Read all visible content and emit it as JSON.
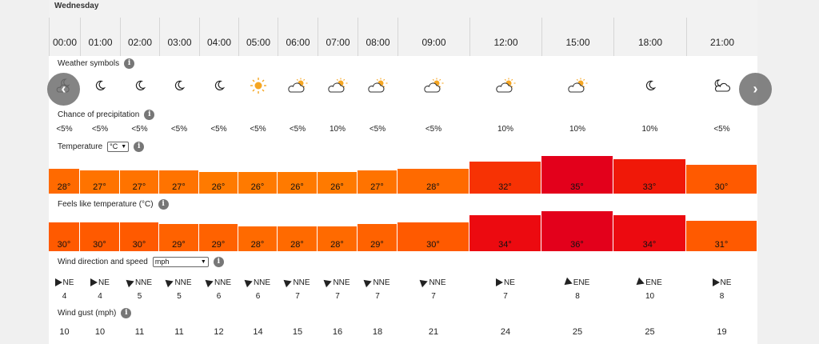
{
  "day": "Wednesday",
  "columns": [
    {
      "time": "00:00",
      "symbol": "moon-cloud",
      "precip": "<5%",
      "temp": "28°",
      "temp_c": 28,
      "feels": "30°",
      "feels_c": 30,
      "wind_dir": "NE",
      "wind_rot": 45,
      "wind": "4",
      "gust": "10"
    },
    {
      "time": "01:00",
      "symbol": "moon",
      "precip": "<5%",
      "temp": "27°",
      "temp_c": 27,
      "feels": "30°",
      "feels_c": 30,
      "wind_dir": "NE",
      "wind_rot": 45,
      "wind": "4",
      "gust": "10"
    },
    {
      "time": "02:00",
      "symbol": "moon",
      "precip": "<5%",
      "temp": "27°",
      "temp_c": 27,
      "feels": "30°",
      "feels_c": 30,
      "wind_dir": "NNE",
      "wind_rot": 25,
      "wind": "5",
      "gust": "11"
    },
    {
      "time": "03:00",
      "symbol": "moon",
      "precip": "<5%",
      "temp": "27°",
      "temp_c": 27,
      "feels": "29°",
      "feels_c": 29,
      "wind_dir": "NNE",
      "wind_rot": 25,
      "wind": "5",
      "gust": "11"
    },
    {
      "time": "04:00",
      "symbol": "moon",
      "precip": "<5%",
      "temp": "26°",
      "temp_c": 26,
      "feels": "29°",
      "feels_c": 29,
      "wind_dir": "NNE",
      "wind_rot": 25,
      "wind": "6",
      "gust": "12"
    },
    {
      "time": "05:00",
      "symbol": "sun",
      "precip": "<5%",
      "temp": "26°",
      "temp_c": 26,
      "feels": "28°",
      "feels_c": 28,
      "wind_dir": "NNE",
      "wind_rot": 25,
      "wind": "6",
      "gust": "14"
    },
    {
      "time": "06:00",
      "symbol": "sun-cloud",
      "precip": "<5%",
      "temp": "26°",
      "temp_c": 26,
      "feels": "28°",
      "feels_c": 28,
      "wind_dir": "NNE",
      "wind_rot": 25,
      "wind": "7",
      "gust": "15"
    },
    {
      "time": "07:00",
      "symbol": "sun-cloud",
      "precip": "10%",
      "temp": "26°",
      "temp_c": 26,
      "feels": "28°",
      "feels_c": 28,
      "wind_dir": "NNE",
      "wind_rot": 25,
      "wind": "7",
      "gust": "16"
    },
    {
      "time": "08:00",
      "symbol": "sun-cloud",
      "precip": "<5%",
      "temp": "27°",
      "temp_c": 27,
      "feels": "29°",
      "feels_c": 29,
      "wind_dir": "NNE",
      "wind_rot": 25,
      "wind": "7",
      "gust": "18"
    },
    {
      "time": "09:00",
      "symbol": "sun-cloud",
      "precip": "<5%",
      "temp": "28°",
      "temp_c": 28,
      "feels": "30°",
      "feels_c": 30,
      "wind_dir": "NNE",
      "wind_rot": 25,
      "wind": "7",
      "gust": "21"
    },
    {
      "time": "12:00",
      "symbol": "sun-cloud",
      "precip": "10%",
      "temp": "32°",
      "temp_c": 32,
      "feels": "34°",
      "feels_c": 34,
      "wind_dir": "NE",
      "wind_rot": 45,
      "wind": "7",
      "gust": "24"
    },
    {
      "time": "15:00",
      "symbol": "sun-cloud",
      "precip": "10%",
      "temp": "35°",
      "temp_c": 35,
      "feels": "36°",
      "feels_c": 36,
      "wind_dir": "ENE",
      "wind_rot": 65,
      "wind": "8",
      "gust": "25"
    },
    {
      "time": "18:00",
      "symbol": "moon",
      "precip": "10%",
      "temp": "33°",
      "temp_c": 33,
      "feels": "34°",
      "feels_c": 34,
      "wind_dir": "ENE",
      "wind_rot": 65,
      "wind": "10",
      "gust": "25"
    },
    {
      "time": "21:00",
      "symbol": "moon-cloud-2",
      "precip": "<5%",
      "temp": "30°",
      "temp_c": 30,
      "feels": "31°",
      "feels_c": 31,
      "wind_dir": "NE",
      "wind_rot": 45,
      "wind": "8",
      "gust": "19"
    }
  ],
  "labels": {
    "weather_symbols": "Weather symbols",
    "precip": "Chance of precipitation",
    "temperature": "Temperature",
    "temp_unit": "°C",
    "feels": "Feels like temperature (°C)",
    "wind": "Wind direction and speed",
    "wind_unit": "mph",
    "gust": "Wind gust (mph)",
    "info": "i"
  },
  "nav": {
    "prev": "‹",
    "next": "›"
  },
  "colors": {
    "hot": "#e8001c",
    "warm": "#ff5a00",
    "mild": "#ff7a00"
  }
}
